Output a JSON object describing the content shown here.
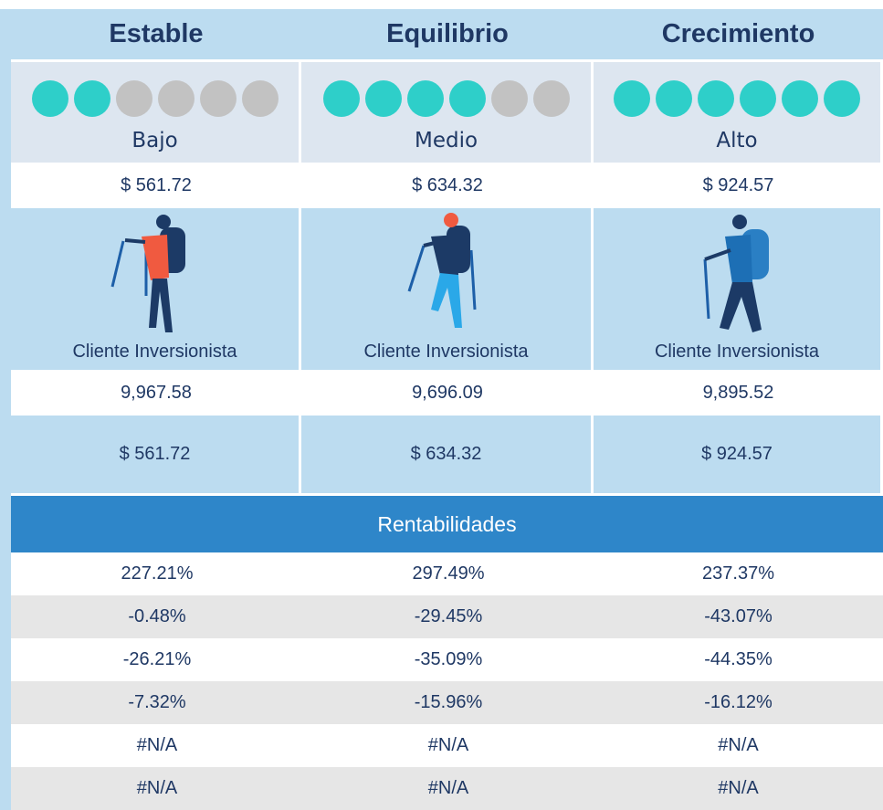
{
  "columns": [
    {
      "name": "Estable",
      "risk": "Bajo",
      "dots_filled": 2,
      "dots_total": 6,
      "price": "$ 561.72",
      "client": "Cliente Inversionista",
      "units": "9,967.58",
      "value": "$ 561.72"
    },
    {
      "name": "Equilibrio",
      "risk": "Medio",
      "dots_filled": 4,
      "dots_total": 6,
      "price": "$ 634.32",
      "client": "Cliente Inversionista",
      "units": "9,696.09",
      "value": "$ 634.32"
    },
    {
      "name": "Crecimiento",
      "risk": "Alto",
      "dots_filled": 6,
      "dots_total": 6,
      "price": "$ 924.57",
      "client": "Cliente Inversionista",
      "units": "9,895.52",
      "value": "$ 924.57"
    }
  ],
  "section": "Rentabilidades",
  "rows": [
    [
      "227.21%",
      "297.49%",
      "237.37%"
    ],
    [
      "-0.48%",
      "-29.45%",
      "-43.07%"
    ],
    [
      "-26.21%",
      "-35.09%",
      "-44.35%"
    ],
    [
      "-7.32%",
      "-15.96%",
      "-16.12%"
    ],
    [
      "#N/A",
      "#N/A",
      "#N/A"
    ],
    [
      "#N/A",
      "#N/A",
      "#N/A"
    ]
  ]
}
